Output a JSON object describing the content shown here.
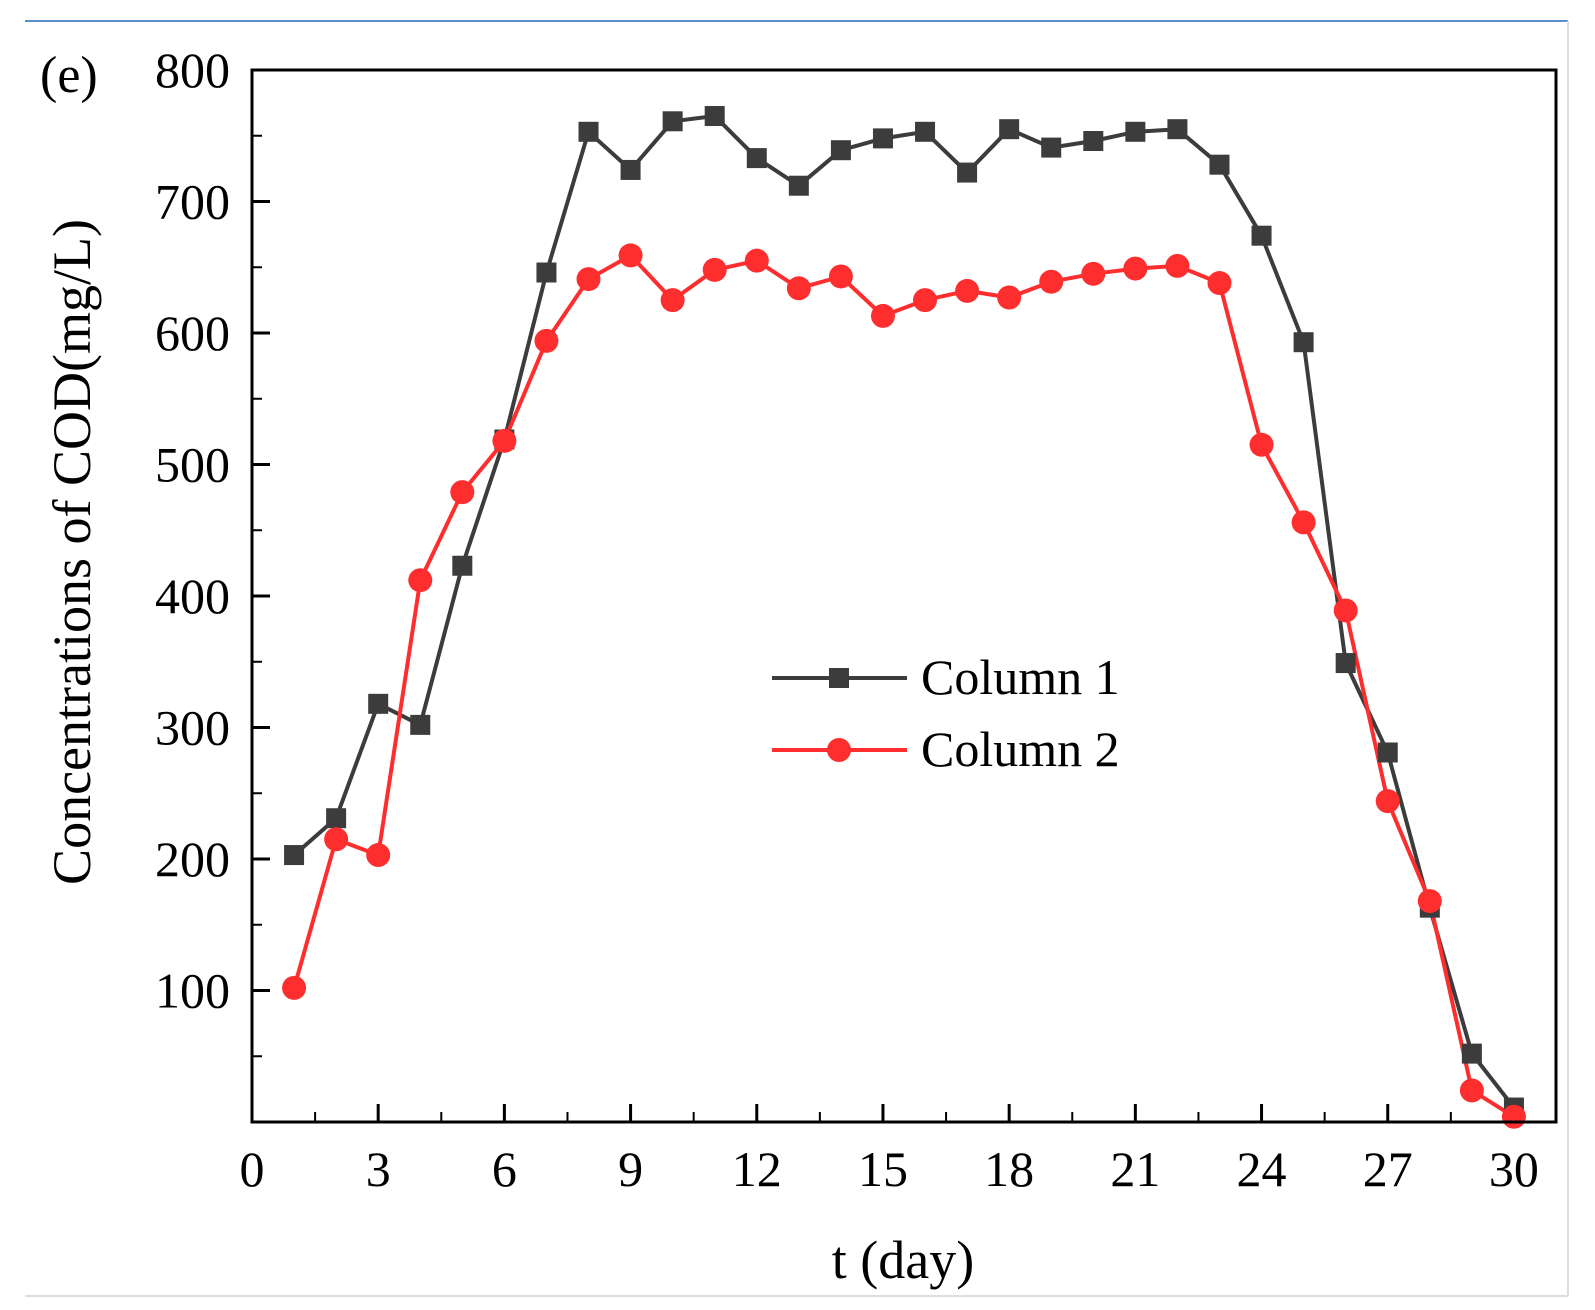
{
  "panel_label": "(e)",
  "chart_data": {
    "type": "line",
    "xlabel": "t (day)",
    "ylabel": "Concentrations of COD(mg/L)",
    "xlim": [
      0,
      31
    ],
    "ylim": [
      0,
      800
    ],
    "xticks": [
      0,
      3,
      6,
      9,
      12,
      15,
      18,
      21,
      24,
      27,
      30
    ],
    "yticks": [
      100,
      200,
      300,
      400,
      500,
      600,
      700,
      800
    ],
    "x_minor_step": 1.5,
    "y_minor_step": 50,
    "legend_position": "center-right",
    "series": [
      {
        "name": "Column 1",
        "marker": "square",
        "color": "#3c3c3c",
        "x": [
          1,
          2,
          3,
          4,
          5,
          6,
          7,
          8,
          9,
          10,
          11,
          12,
          13,
          14,
          15,
          16,
          17,
          18,
          19,
          20,
          21,
          22,
          23,
          24,
          25,
          26,
          27,
          28,
          29,
          30
        ],
        "values": [
          203,
          231,
          318,
          302,
          423,
          519,
          646,
          753,
          724,
          761,
          765,
          733,
          712,
          739,
          748,
          753,
          722,
          755,
          741,
          746,
          753,
          755,
          728,
          674,
          593,
          349,
          281,
          163,
          52,
          11
        ]
      },
      {
        "name": "Column 2",
        "marker": "circle",
        "color": "#ff2e2e",
        "x": [
          1,
          2,
          3,
          4,
          5,
          6,
          7,
          8,
          9,
          10,
          11,
          12,
          13,
          14,
          15,
          16,
          17,
          18,
          19,
          20,
          21,
          22,
          23,
          24,
          25,
          26,
          27,
          28,
          29,
          30
        ],
        "values": [
          102,
          215,
          203,
          412,
          479,
          518,
          594,
          641,
          659,
          625,
          648,
          655,
          634,
          643,
          613,
          625,
          632,
          627,
          639,
          645,
          649,
          651,
          638,
          515,
          456,
          389,
          244,
          168,
          24,
          4
        ]
      }
    ]
  }
}
